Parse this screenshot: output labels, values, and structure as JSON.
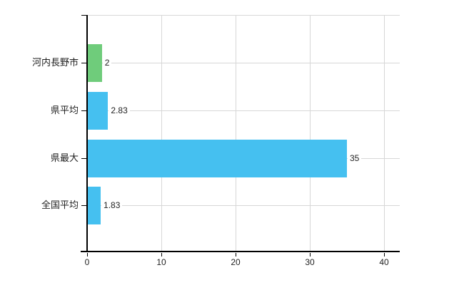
{
  "chart_data": {
    "type": "bar",
    "orientation": "horizontal",
    "title": "",
    "xlabel": "",
    "ylabel": "",
    "categories": [
      "河内長野市",
      "県平均",
      "県最大",
      "全国平均"
    ],
    "values": [
      2,
      2.83,
      35,
      1.83
    ],
    "value_labels": [
      "2",
      "2.83",
      "35",
      "1.83"
    ],
    "bar_colors": [
      "#6fcc7b",
      "#45c0f0",
      "#45c0f0",
      "#45c0f0"
    ],
    "x_ticks": [
      0,
      10,
      20,
      30,
      40
    ],
    "xlim": [
      0,
      42.1
    ],
    "grid": true,
    "legend": "none"
  },
  "colors": {
    "bar_green": "#6fcc7b",
    "bar_blue": "#45c0f0",
    "gridline": "#d7d7d7",
    "axis": "#000000",
    "text": "#1f1f1f",
    "background": "#ffffff"
  }
}
